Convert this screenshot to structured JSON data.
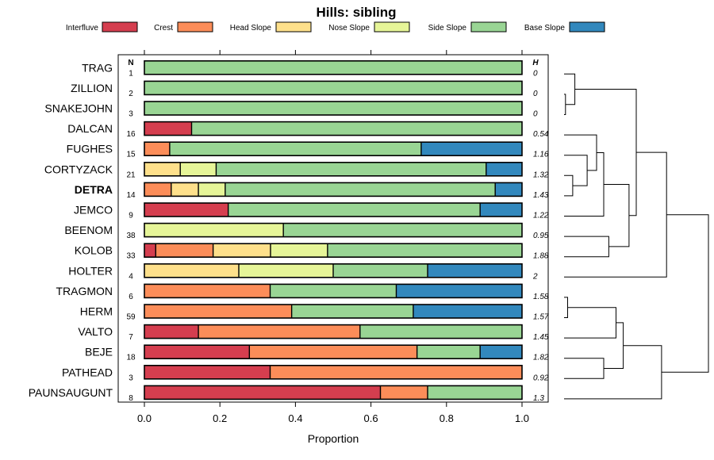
{
  "chart_data": {
    "type": "bar",
    "subtype": "stacked-horizontal-proportion",
    "title": "Hills: sibling",
    "xlabel": "Proportion",
    "ylabel": "",
    "xlim": [
      0,
      1
    ],
    "x_ticks": [
      "0.0",
      "0.2",
      "0.4",
      "0.6",
      "0.8",
      "1.0"
    ],
    "legend_position": "top",
    "n_header": "N",
    "h_header": "H",
    "legend": [
      {
        "name": "Interfluve",
        "color": "#D53E4F"
      },
      {
        "name": "Crest",
        "color": "#FC8D59"
      },
      {
        "name": "Head Slope",
        "color": "#FEE08B"
      },
      {
        "name": "Nose Slope",
        "color": "#E6F598"
      },
      {
        "name": "Side Slope",
        "color": "#99D594"
      },
      {
        "name": "Base Slope",
        "color": "#3288BD"
      }
    ],
    "rows": [
      {
        "label": "TRAG",
        "n": "1",
        "h": "0",
        "bold": false,
        "values": [
          0,
          0,
          0,
          0,
          1.0,
          0
        ]
      },
      {
        "label": "ZILLION",
        "n": "2",
        "h": "0",
        "bold": false,
        "values": [
          0,
          0,
          0,
          0,
          1.0,
          0
        ]
      },
      {
        "label": "SNAKEJOHN",
        "n": "3",
        "h": "0",
        "bold": false,
        "values": [
          0,
          0,
          0,
          0,
          1.0,
          0
        ]
      },
      {
        "label": "DALCAN",
        "n": "16",
        "h": "0.54",
        "bold": false,
        "values": [
          0.125,
          0,
          0,
          0,
          0.875,
          0
        ]
      },
      {
        "label": "FUGHES",
        "n": "15",
        "h": "1.16",
        "bold": false,
        "values": [
          0,
          0.067,
          0,
          0,
          0.666,
          0.267
        ]
      },
      {
        "label": "CORTYZACK",
        "n": "21",
        "h": "1.32",
        "bold": false,
        "values": [
          0,
          0,
          0.095,
          0.095,
          0.715,
          0.095
        ]
      },
      {
        "label": "DETRA",
        "n": "14",
        "h": "1.43",
        "bold": true,
        "values": [
          0,
          0.071,
          0.072,
          0.071,
          0.715,
          0.071
        ]
      },
      {
        "label": "JEMCO",
        "n": "9",
        "h": "1.22",
        "bold": false,
        "values": [
          0.222,
          0,
          0,
          0,
          0.667,
          0.111
        ]
      },
      {
        "label": "BEENOM",
        "n": "38",
        "h": "0.95",
        "bold": false,
        "values": [
          0,
          0,
          0,
          0.368,
          0.632,
          0
        ]
      },
      {
        "label": "KOLOB",
        "n": "33",
        "h": "1.88",
        "bold": false,
        "values": [
          0.03,
          0.152,
          0.152,
          0.151,
          0.515,
          0
        ]
      },
      {
        "label": "HOLTER",
        "n": "4",
        "h": "2",
        "bold": false,
        "values": [
          0,
          0,
          0.25,
          0.25,
          0.25,
          0.25
        ]
      },
      {
        "label": "TRAGMON",
        "n": "6",
        "h": "1.58",
        "bold": false,
        "values": [
          0,
          0.333,
          0,
          0,
          0.334,
          0.333
        ]
      },
      {
        "label": "HERM",
        "n": "59",
        "h": "1.57",
        "bold": false,
        "values": [
          0,
          0.39,
          0,
          0,
          0.322,
          0.288
        ]
      },
      {
        "label": "VALTO",
        "n": "7",
        "h": "1.45",
        "bold": false,
        "values": [
          0.143,
          0.428,
          0,
          0,
          0.429,
          0
        ]
      },
      {
        "label": "BEJE",
        "n": "18",
        "h": "1.82",
        "bold": false,
        "values": [
          0.278,
          0.444,
          0,
          0,
          0.167,
          0.111
        ]
      },
      {
        "label": "PATHEAD",
        "n": "3",
        "h": "0.92",
        "bold": false,
        "values": [
          0.333,
          0.667,
          0,
          0,
          0,
          0
        ]
      },
      {
        "label": "PAUNSAUGUNT",
        "n": "8",
        "h": "1.3",
        "bold": false,
        "values": [
          0.625,
          0.125,
          0,
          0,
          0.25,
          0
        ]
      }
    ],
    "dendrogram_merges": [
      [
        -2,
        -3
      ],
      [
        -1,
        1
      ],
      [
        -6,
        -7
      ],
      [
        -5,
        3
      ],
      [
        -4,
        4
      ],
      [
        -8,
        5
      ],
      [
        -9,
        -10
      ],
      [
        6,
        7
      ],
      [
        2,
        8
      ],
      [
        -12,
        -13
      ],
      [
        -14,
        10
      ],
      [
        -15,
        -16
      ],
      [
        -11,
        9
      ],
      [
        11,
        12
      ],
      [
        -17,
        14
      ],
      [
        13,
        15
      ]
    ],
    "dendrogram_heights": [
      0.02,
      0.15,
      0.12,
      0.32,
      0.45,
      0.55,
      0.62,
      0.9,
      1.0,
      0.05,
      0.72,
      0.55,
      1.42,
      0.82,
      1.35,
      2.0
    ]
  }
}
